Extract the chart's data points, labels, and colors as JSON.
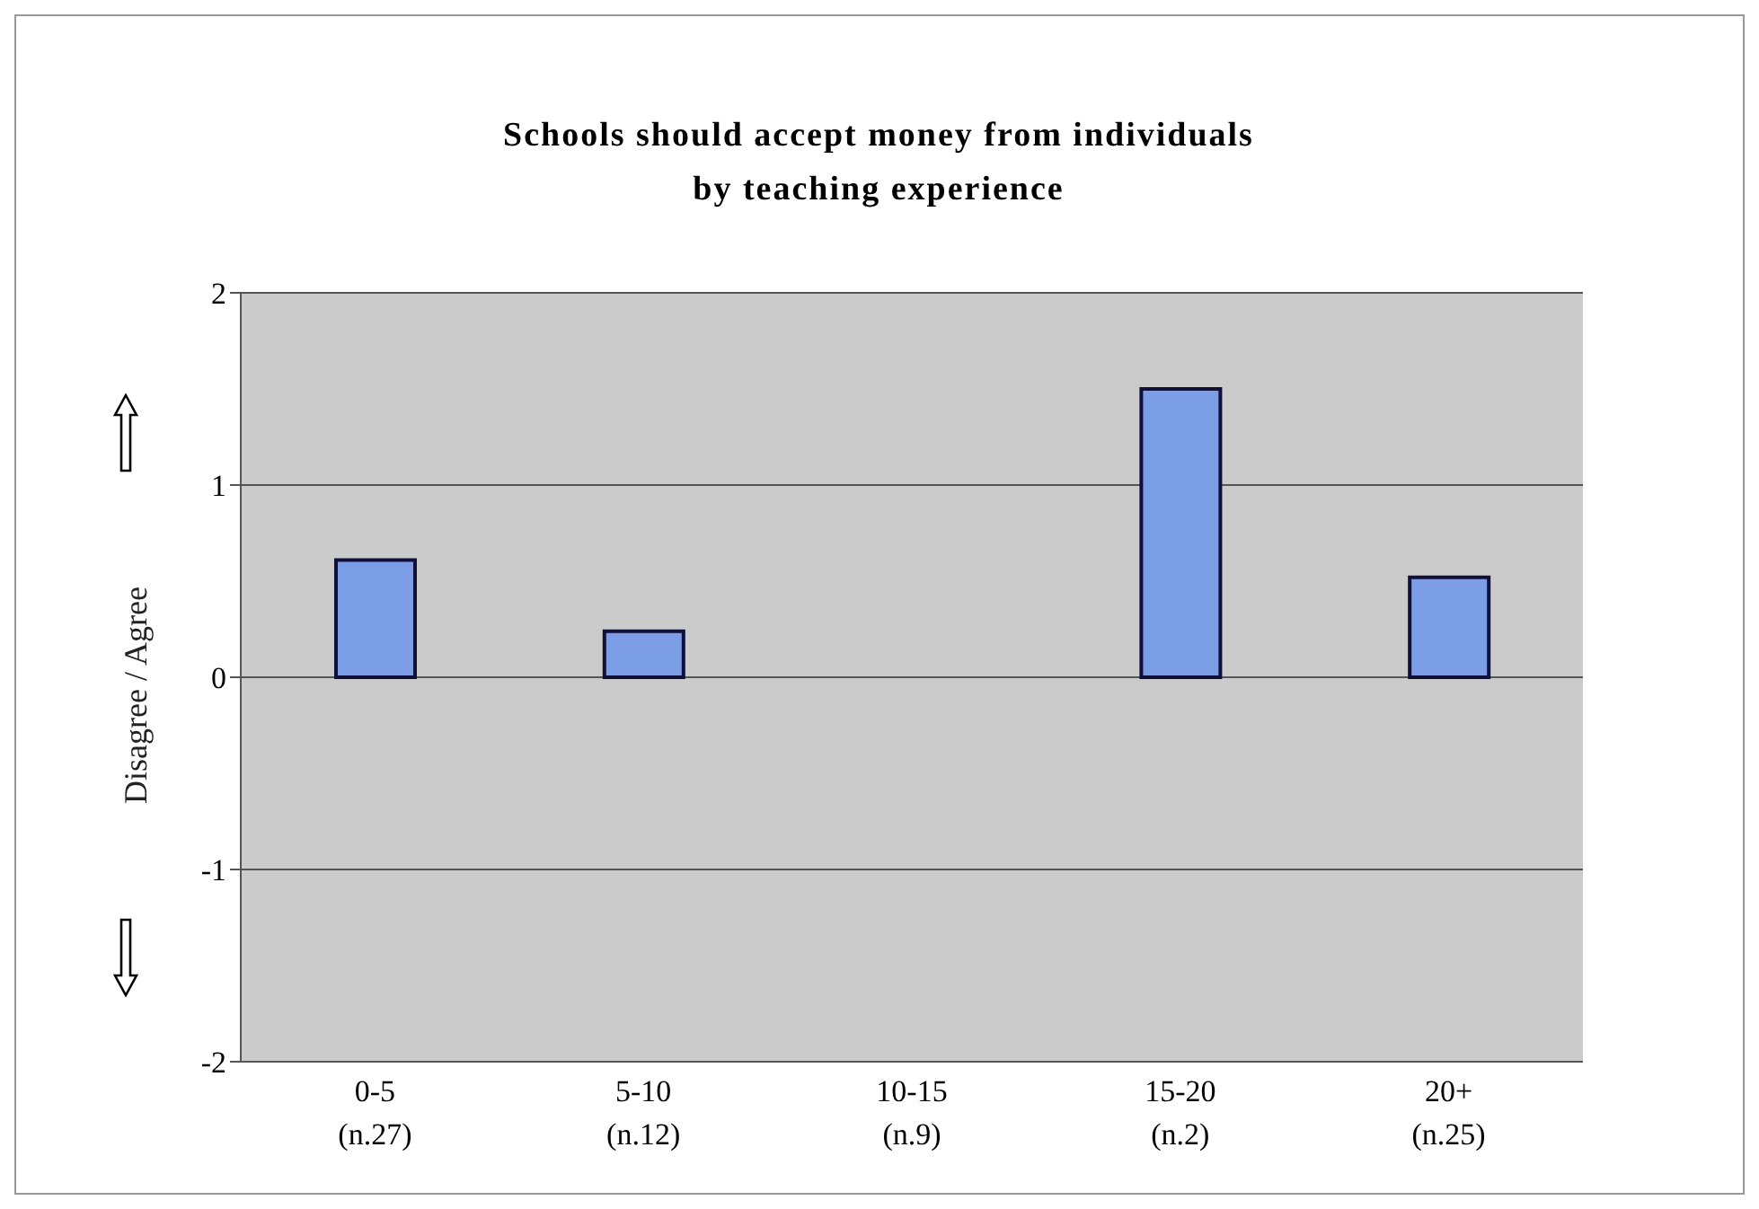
{
  "chart_data": {
    "type": "bar",
    "title": "Schools should accept money from individuals\nby teaching experience",
    "ylabel": "Disagree / Agree",
    "categories": [
      "0-5\n(n.27)",
      "5-10\n(n.12)",
      "10-15\n(n.9)",
      "15-20\n(n.2)",
      "20+\n(n.25)"
    ],
    "values": [
      0.61,
      0.24,
      0,
      1.5,
      0.52
    ],
    "color": "#7b9ee6",
    "ylim": [
      -2,
      2
    ],
    "yticks": [
      -2,
      -1,
      0,
      1,
      2
    ],
    "grid": "y"
  }
}
